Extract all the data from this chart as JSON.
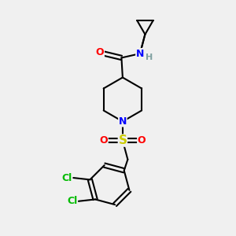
{
  "background_color": "#f0f0f0",
  "bond_color": "#000000",
  "bond_width": 1.5,
  "atom_colors": {
    "C": "#000000",
    "N": "#0000ff",
    "O": "#ff0000",
    "S": "#cccc00",
    "Cl": "#00bb00",
    "H": "#7fa0a0"
  },
  "font_size": 9,
  "fig_width": 3.0,
  "fig_height": 3.0,
  "dpi": 100
}
